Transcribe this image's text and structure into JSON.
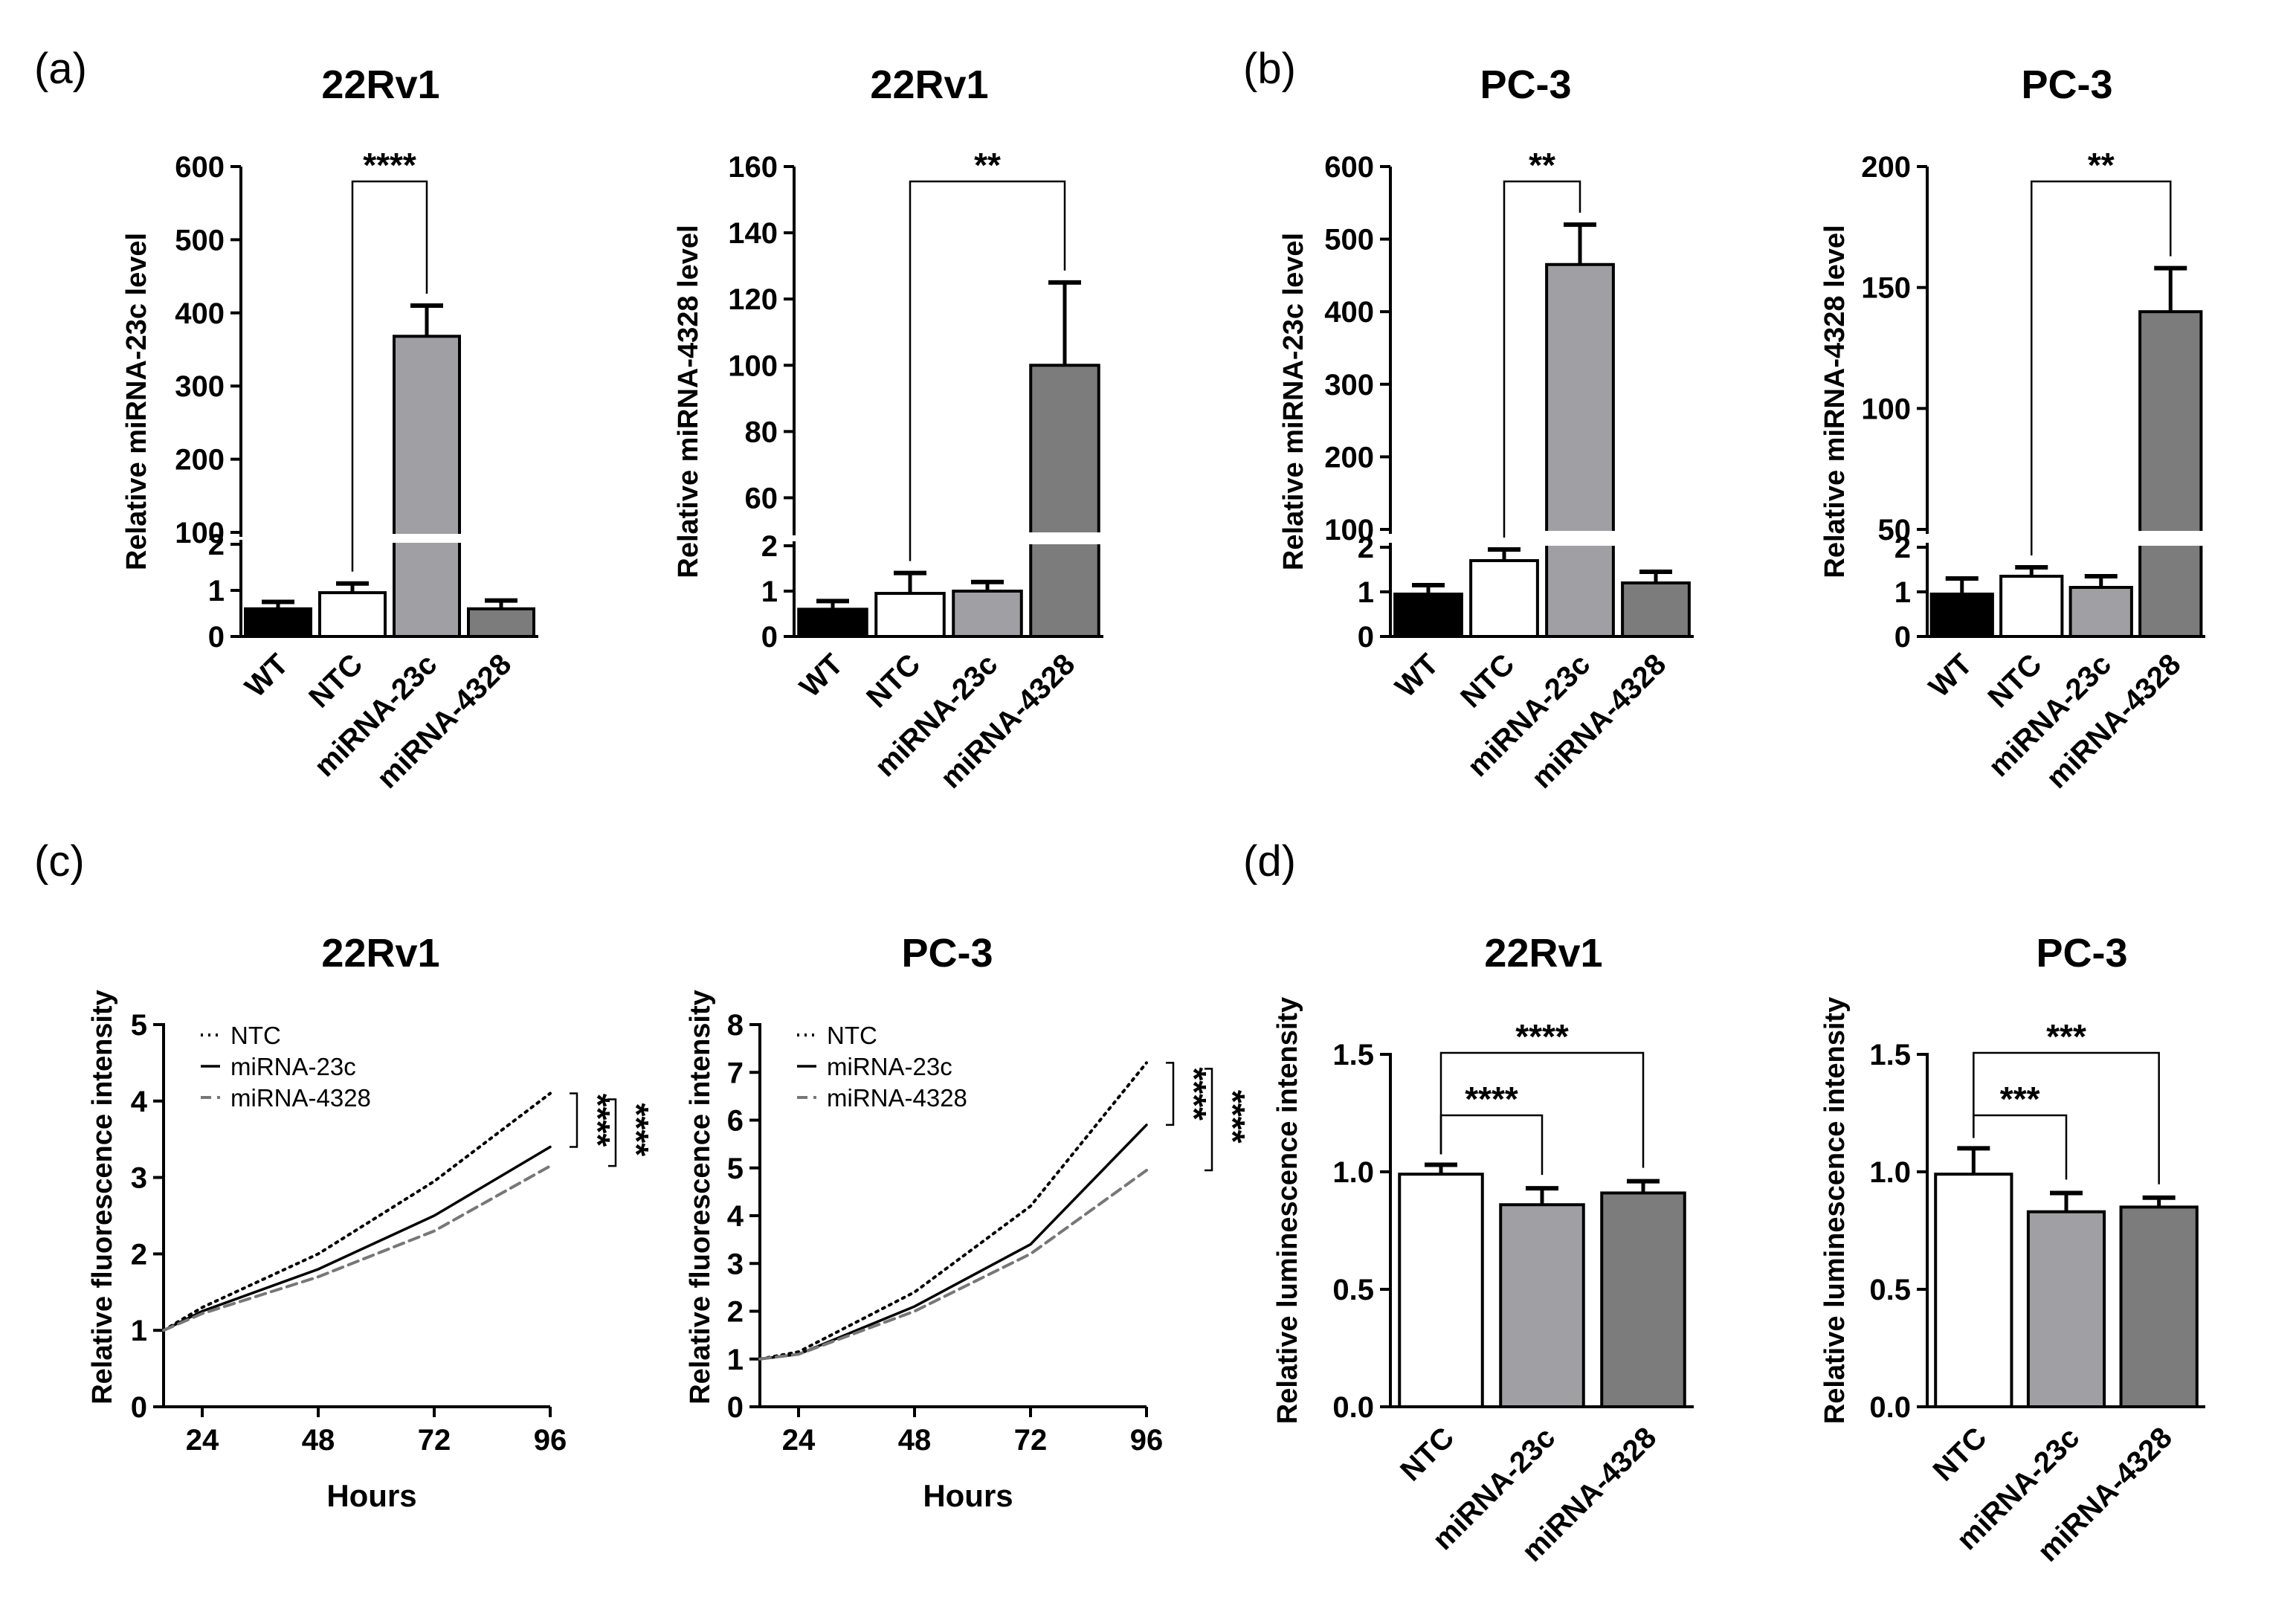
{
  "panels": [
    {
      "label": "(a)"
    },
    {
      "label": "(b)"
    },
    {
      "label": "(c)"
    },
    {
      "label": "(d)"
    }
  ],
  "colors": {
    "WT": "#000000",
    "NTC": "#ffffff",
    "miRNA-23c": "#a0a0a4",
    "miRNA-4328": "#7c7c7c",
    "line_NTC": "#000000",
    "line_23c": "#000000",
    "line_4328": "#777777"
  },
  "chart_data": [
    {
      "type": "bar",
      "panel": "(a)",
      "title": "22Rv1",
      "ylabel": "Relative miRNA-23c level",
      "categories": [
        "WT",
        "NTC",
        "miRNA-23c",
        "miRNA-4328"
      ],
      "values": [
        0.6,
        0.95,
        368,
        0.6
      ],
      "errors": [
        0.15,
        0.2,
        42,
        0.18
      ],
      "broken_axis": true,
      "lower_range": [
        0,
        2
      ],
      "lower_ticks": [
        "0",
        "1",
        "2"
      ],
      "upper_range": [
        100,
        600
      ],
      "upper_ticks": [
        "100",
        "200",
        "300",
        "400",
        "500",
        "600"
      ],
      "significance": [
        {
          "from": "NTC",
          "to": "miRNA-23c",
          "label": "****"
        }
      ]
    },
    {
      "type": "bar",
      "panel": "(a)",
      "title": "22Rv1",
      "ylabel": "Relative miRNA-4328 level",
      "categories": [
        "WT",
        "NTC",
        "miRNA-23c",
        "miRNA-4328"
      ],
      "values": [
        0.6,
        0.95,
        1.0,
        100
      ],
      "errors": [
        0.18,
        0.45,
        0.2,
        25
      ],
      "broken_axis": true,
      "lower_range": [
        0,
        2
      ],
      "lower_ticks": [
        "0",
        "1",
        "2"
      ],
      "upper_range": [
        50,
        160
      ],
      "upper_ticks": [
        "60",
        "80",
        "100",
        "120",
        "140",
        "160"
      ],
      "significance": [
        {
          "from": "NTC",
          "to": "miRNA-4328",
          "label": "**"
        }
      ]
    },
    {
      "type": "bar",
      "panel": "(b)",
      "title": "PC-3",
      "ylabel": "Relative miRNA-23c level",
      "categories": [
        "WT",
        "NTC",
        "miRNA-23c",
        "miRNA-4328"
      ],
      "values": [
        0.95,
        1.7,
        465,
        1.2
      ],
      "errors": [
        0.2,
        0.25,
        55,
        0.25
      ],
      "broken_axis": true,
      "lower_range": [
        0,
        2
      ],
      "lower_ticks": [
        "0",
        "1",
        "2"
      ],
      "upper_range": [
        100,
        600
      ],
      "upper_ticks": [
        "100",
        "200",
        "300",
        "400",
        "500",
        "600"
      ],
      "significance": [
        {
          "from": "NTC",
          "to": "miRNA-23c",
          "label": "**"
        }
      ]
    },
    {
      "type": "bar",
      "panel": "(b)",
      "title": "PC-3",
      "ylabel": "Relative miRNA-4328 level",
      "categories": [
        "WT",
        "NTC",
        "miRNA-23c",
        "miRNA-4328"
      ],
      "values": [
        0.95,
        1.35,
        1.1,
        140
      ],
      "errors": [
        0.35,
        0.2,
        0.25,
        18
      ],
      "broken_axis": true,
      "lower_range": [
        0,
        2
      ],
      "lower_ticks": [
        "0",
        "1",
        "2"
      ],
      "upper_range": [
        50,
        200
      ],
      "upper_ticks": [
        "50",
        "100",
        "150",
        "200"
      ],
      "significance": [
        {
          "from": "NTC",
          "to": "miRNA-4328",
          "label": "**"
        }
      ]
    },
    {
      "type": "line",
      "panel": "(c)",
      "title": "22Rv1",
      "xlabel": "Hours",
      "ylabel": "Relative fluorescence intensity",
      "x": [
        16,
        24,
        48,
        72,
        96
      ],
      "xlim": [
        16,
        96
      ],
      "xticks": [
        "24",
        "48",
        "72",
        "96"
      ],
      "ylim": [
        0,
        5
      ],
      "yticks": [
        "0",
        "1",
        "2",
        "3",
        "4",
        "5"
      ],
      "series": [
        {
          "name": "NTC",
          "style": "dotted",
          "values": [
            1.0,
            1.3,
            2.0,
            2.95,
            4.1
          ]
        },
        {
          "name": "miRNA-23c",
          "style": "solid",
          "values": [
            1.0,
            1.25,
            1.8,
            2.5,
            3.4
          ]
        },
        {
          "name": "miRNA-4328",
          "style": "dashed",
          "values": [
            1.0,
            1.22,
            1.7,
            2.3,
            3.15
          ]
        }
      ],
      "significance": [
        {
          "label": "****"
        },
        {
          "label": "****"
        }
      ]
    },
    {
      "type": "line",
      "panel": "(c)",
      "title": "PC-3",
      "xlabel": "Hours",
      "ylabel": "Relative fluorescence intensity",
      "x": [
        16,
        24,
        48,
        72,
        96
      ],
      "xlim": [
        16,
        96
      ],
      "xticks": [
        "24",
        "48",
        "72",
        "96"
      ],
      "ylim": [
        0,
        8
      ],
      "yticks": [
        "0",
        "1",
        "2",
        "3",
        "4",
        "5",
        "6",
        "7",
        "8"
      ],
      "series": [
        {
          "name": "NTC",
          "style": "dotted",
          "values": [
            1.0,
            1.15,
            2.4,
            4.2,
            7.2
          ]
        },
        {
          "name": "miRNA-23c",
          "style": "solid",
          "values": [
            1.0,
            1.1,
            2.1,
            3.4,
            5.9
          ]
        },
        {
          "name": "miRNA-4328",
          "style": "dashed",
          "values": [
            1.0,
            1.1,
            2.0,
            3.2,
            4.95
          ]
        }
      ],
      "significance": [
        {
          "label": "****"
        },
        {
          "label": "****"
        }
      ]
    },
    {
      "type": "bar",
      "panel": "(d)",
      "title": "22Rv1",
      "ylabel": "Relative luminescence intensity",
      "categories": [
        "NTC",
        "miRNA-23c",
        "miRNA-4328"
      ],
      "values": [
        0.99,
        0.86,
        0.91
      ],
      "errors": [
        0.04,
        0.07,
        0.05
      ],
      "ylim": [
        0,
        1.5
      ],
      "yticks": [
        "0.0",
        "0.5",
        "1.0",
        "1.5"
      ],
      "significance": [
        {
          "from": "NTC",
          "to": "miRNA-23c",
          "label": "****"
        },
        {
          "from": "NTC",
          "to": "miRNA-4328",
          "label": "****"
        }
      ]
    },
    {
      "type": "bar",
      "panel": "(d)",
      "title": "PC-3",
      "ylabel": "Relative luminescence intensity",
      "categories": [
        "NTC",
        "miRNA-23c",
        "miRNA-4328"
      ],
      "values": [
        0.99,
        0.83,
        0.85
      ],
      "errors": [
        0.11,
        0.08,
        0.04
      ],
      "ylim": [
        0,
        1.5
      ],
      "yticks": [
        "0.0",
        "0.5",
        "1.0",
        "1.5"
      ],
      "significance": [
        {
          "from": "NTC",
          "to": "miRNA-23c",
          "label": "***"
        },
        {
          "from": "NTC",
          "to": "miRNA-4328",
          "label": "***"
        }
      ]
    }
  ]
}
